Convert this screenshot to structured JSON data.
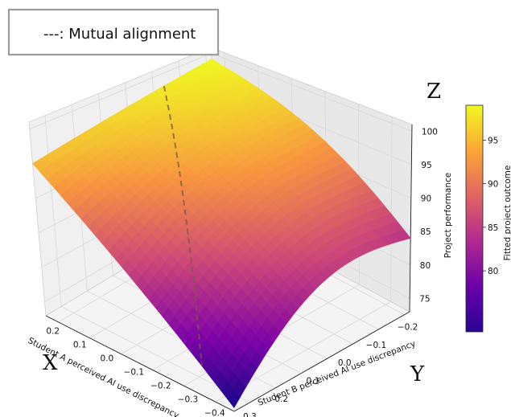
{
  "legend": {
    "text": "---: Mutual alignment"
  },
  "axis_letters": {
    "x": "X",
    "y": "Y",
    "z": "Z"
  },
  "colorbar": {
    "label": "Fitted project outcome",
    "range": [
      73,
      99
    ],
    "ticks": [
      "80",
      "85",
      "90",
      "95"
    ],
    "colormap": "plasma"
  },
  "chart_data": {
    "type": "surface",
    "xlabel": "Student A perceived AI use discrepancy",
    "ylabel": "Student B perceived AI use discrepancy",
    "zlabel": "Project performance",
    "xlim": [
      -0.42,
      0.26
    ],
    "ylim": [
      -0.24,
      0.36
    ],
    "zlim": [
      73,
      101
    ],
    "xticks": [
      "0.2",
      "0.1",
      "0.0",
      "−0.1",
      "−0.2",
      "−0.3",
      "−0.4"
    ],
    "yticks": [
      "−0.2",
      "−0.1",
      "0.0",
      "0.1",
      "0.2",
      "0.3"
    ],
    "zticks": [
      "75",
      "80",
      "85",
      "90",
      "95",
      "100"
    ],
    "surface_corners": [
      {
        "x": 0.26,
        "y": 0.36,
        "z": 73.5
      },
      {
        "x": -0.42,
        "y": 0.36,
        "z": 84.0
      },
      {
        "x": -0.42,
        "y": -0.24,
        "z": 99.0
      },
      {
        "x": 0.26,
        "y": -0.24,
        "z": 95.0
      }
    ],
    "mutual_alignment_line": "dashed, along x = y",
    "grid": true
  }
}
